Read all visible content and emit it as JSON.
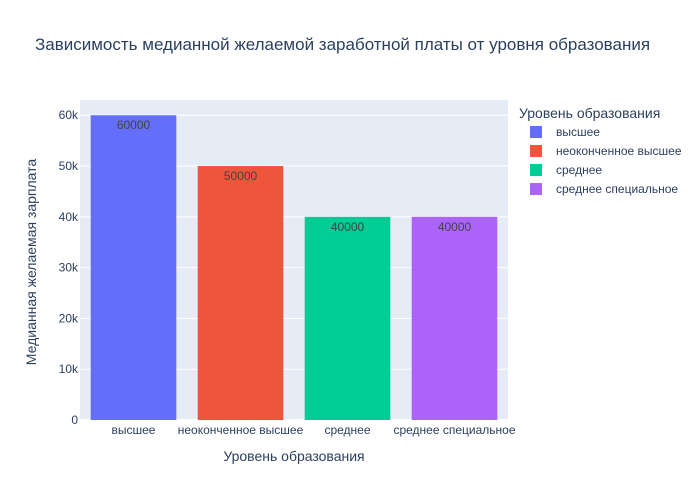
{
  "chart_data": {
    "type": "bar",
    "title": "Зависимость медианной желаемой заработной платы от уровня образования",
    "xlabel": "Уровень образования",
    "ylabel": "Медианная желаемая зарплата",
    "categories": [
      "высшее",
      "неоконченное высшее",
      "среднее",
      "среднее специальное"
    ],
    "values": [
      60000,
      50000,
      40000,
      40000
    ],
    "data_labels": [
      "60000",
      "50000",
      "40000",
      "40000"
    ],
    "colors": [
      "#636efa",
      "#ef553b",
      "#00cc96",
      "#ab63fa"
    ],
    "ylim": [
      0,
      63000
    ],
    "yticks": [
      0,
      10000,
      20000,
      30000,
      40000,
      50000,
      60000
    ],
    "ytick_labels": [
      "0",
      "10k",
      "20k",
      "30k",
      "40k",
      "50k",
      "60k"
    ],
    "grid": true,
    "plot_background": "#e5ecf6",
    "legend": {
      "title": "Уровень образования",
      "placement": "right",
      "entries": [
        "высшее",
        "неоконченное высшее",
        "среднее",
        "среднее специальное"
      ]
    }
  }
}
